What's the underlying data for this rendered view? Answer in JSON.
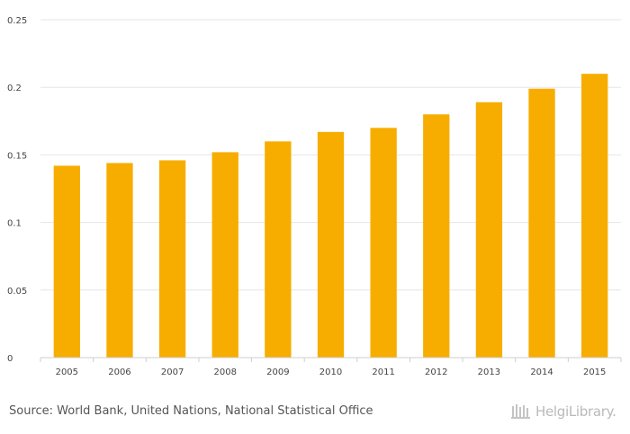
{
  "chart_data": {
    "type": "bar",
    "categories": [
      "2005",
      "2006",
      "2007",
      "2008",
      "2009",
      "2010",
      "2011",
      "2012",
      "2013",
      "2014",
      "2015"
    ],
    "values": [
      0.142,
      0.144,
      0.146,
      0.152,
      0.16,
      0.167,
      0.17,
      0.18,
      0.189,
      0.199,
      0.21
    ],
    "yticks": [
      "0",
      "0.05",
      "0.1",
      "0.15",
      "0.2",
      "0.25"
    ],
    "ylim": [
      0,
      0.25
    ],
    "title": "",
    "xlabel": "",
    "ylabel": "",
    "grid": true,
    "bar_color": "#f7ad00"
  },
  "footer": {
    "source": "Source: World Bank, United Nations, National Statistical Office",
    "brand": "HelgiLibrary."
  }
}
